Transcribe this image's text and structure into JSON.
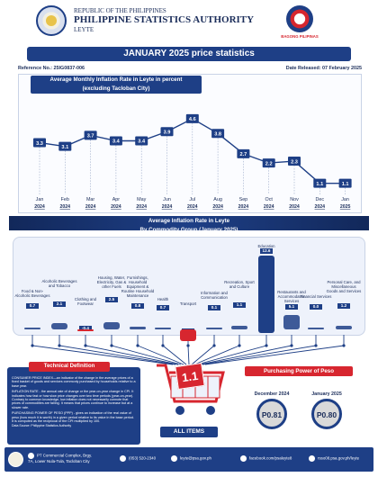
{
  "header": {
    "republic": "REPUBLIC OF THE PHILIPPINES",
    "agency": "PHILIPPINE STATISTICS AUTHORITY",
    "province": "LEYTE",
    "slogan": "BAGONG PILIPINAS",
    "title": "JANUARY 2025 price statistics",
    "reference": "Reference No.: 25IG0837-006",
    "released": "Date Released: 07 February 2025"
  },
  "chart_data": [
    {
      "type": "line",
      "title": "Average Monthly Inflation Rate in Leyte in percent",
      "subtitle": "(excluding Tacloban City)",
      "categories": [
        "Jan",
        "Feb",
        "Mar",
        "Apr",
        "May",
        "Jun",
        "Jul",
        "Aug",
        "Sep",
        "Oct",
        "Nov",
        "Dec",
        "Jan"
      ],
      "years": [
        "2024",
        "2024",
        "2024",
        "2024",
        "2024",
        "2024",
        "2024",
        "2024",
        "2024",
        "2024",
        "2024",
        "2024",
        "2025"
      ],
      "values": [
        3.3,
        3.1,
        3.7,
        3.4,
        3.4,
        3.9,
        4.6,
        3.8,
        2.7,
        2.2,
        2.3,
        1.1,
        1.1
      ],
      "value_labels": [
        "3.3",
        "3.1",
        "3.7",
        "3.4",
        "3.4",
        "3.9",
        "4.6",
        "3.8",
        "2.7",
        "2.2",
        "2.3",
        "1.1",
        "1.1"
      ],
      "line_color": "#1e3f86"
    },
    {
      "type": "bar",
      "title": "Average Inflation Rate in Leyte",
      "subtitle": "By Commodity Group (January 2025)",
      "categories": [
        "Food & Non-Alcoholic Beverages",
        "Alcoholic Beverages and Tobacco",
        "Clothing and Footwear",
        "Housing, Water, Electricity, Gas & other Fuels",
        "Furnishings, Household Equipment & Routine Household Maintenance",
        "Health",
        "Transport",
        "Information and Communication",
        "Recreation, Sport and Culture",
        "Education",
        "Restaurants and Accommodation Services",
        "Financial Services",
        "Personal Care, and Miscellaneous Goods and Services"
      ],
      "values": [
        0.7,
        2.1,
        -0.4,
        2.5,
        0.8,
        0.7,
        -4.1,
        0.1,
        1.1,
        12.6,
        5.1,
        0.0,
        1.2
      ],
      "value_labels": [
        "0.7",
        "2.1",
        "-0.4",
        "2.5",
        "0.8",
        "0.7",
        "-4.1",
        "0.1",
        "1.1",
        "12.6",
        "5.1",
        "0.0",
        "1.2"
      ]
    }
  ],
  "all_items": {
    "value": "1.1",
    "label": "ALL ITEMS"
  },
  "technical": {
    "heading": "Technical Definition",
    "p1": "CONSUMER PRICE INDEX—an indicator of the change in the average prices of a fixed basket of goods and services commonly purchased by households relative to a base year.",
    "p2": "INFLATION RATE - the annual rate of change or the year-on-year change in CPI. It indicates how fast or how slow price changes over two time periods (year-on-year). Contrary to common knowledge, low inflation does not necessarily connote that prices of commodities are falling. It means that prices continue to increase but at a slower rate.",
    "p3": "PURCHASING POWER OF PESO (PPP) - gives an indication of the real value of peso (how much it is worth) in a given period relative to its value in the base period. It is computed as the reciprocal of the CPI multiplied by 100.",
    "source": "Data Source: Philippine Statistics Authority"
  },
  "ppp": {
    "heading": "Purchasing Power of Peso",
    "label1": "December 2024",
    "value1": "P0.81",
    "label2": "January 2025",
    "value2": "P0.80"
  },
  "footer": {
    "address": "PT Commercial Complex, Brgy. 7A, Lower Nula-Tula, Tacloban City",
    "phone": "(053) 520-2340",
    "email": "leyte@psa.gov.ph",
    "facebook": "facebook.com/psaleyte8",
    "website": "rsso08.psa.gov.ph/leyte"
  },
  "colors": {
    "navy": "#1e3f86",
    "red": "#d7262f",
    "accent": "#2b5cb8"
  }
}
